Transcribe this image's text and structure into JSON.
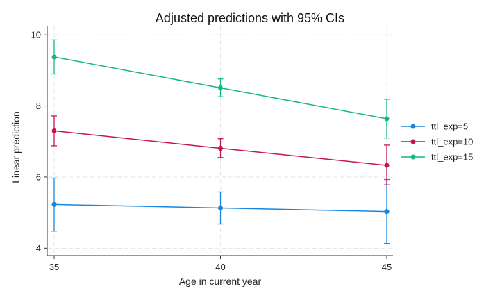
{
  "chart_data": {
    "type": "line",
    "title": "Adjusted predictions with 95% CIs",
    "xlabel": "Age in current year",
    "ylabel": "Linear prediction",
    "x": [
      35,
      40,
      45
    ],
    "xticks": [
      "35",
      "40",
      "45"
    ],
    "yticks": [
      "4",
      "6",
      "8",
      "10"
    ],
    "xlim": [
      35,
      45
    ],
    "ylim": [
      3.85,
      10.2
    ],
    "grid": true,
    "legend_position": "right",
    "series": [
      {
        "name": "ttl_exp=5",
        "color": "#1a85dc",
        "values": [
          5.23,
          5.13,
          5.03
        ],
        "ci_low": [
          4.48,
          4.68,
          4.13
        ],
        "ci_high": [
          5.97,
          5.58,
          5.93
        ]
      },
      {
        "name": "ttl_exp=10",
        "color": "#c4154f",
        "values": [
          7.3,
          6.81,
          6.33
        ],
        "ci_low": [
          6.88,
          6.55,
          5.78
        ],
        "ci_high": [
          7.72,
          7.08,
          6.9
        ]
      },
      {
        "name": "ttl_exp=15",
        "color": "#14b87c",
        "values": [
          9.38,
          8.51,
          7.64
        ],
        "ci_low": [
          8.9,
          8.26,
          7.1
        ],
        "ci_high": [
          9.86,
          8.76,
          8.19
        ]
      }
    ]
  }
}
